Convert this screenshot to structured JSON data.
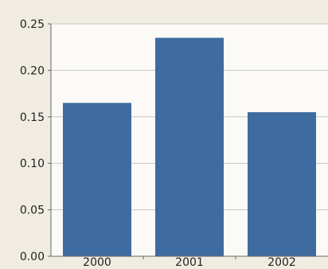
{
  "chart_data": {
    "type": "bar",
    "categories": [
      "2000",
      "2001",
      "2002"
    ],
    "values": [
      0.165,
      0.235,
      0.155
    ],
    "yticks": [
      "0.00",
      "0.05",
      "0.10",
      "0.15",
      "0.20",
      "0.25"
    ],
    "ylim": [
      0,
      0.25
    ],
    "grid": true,
    "legend": "none",
    "colors": {
      "bar": "#3f6ca0",
      "plot_bg": "#fbfaf6",
      "page_bg": "#f0ece2",
      "grid": "#c8c8c8",
      "axis": "#666666",
      "text": "#222222"
    }
  }
}
